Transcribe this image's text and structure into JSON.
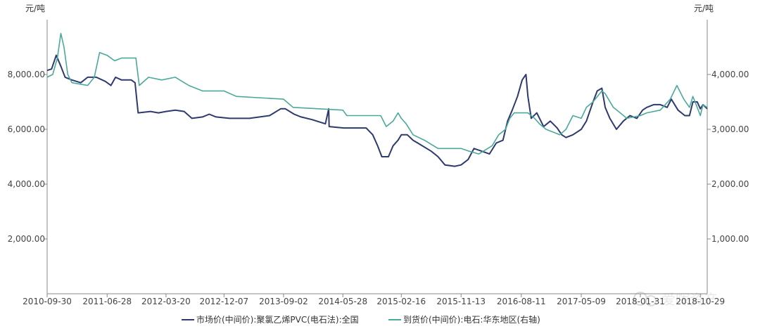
{
  "chart_data": {
    "type": "line",
    "y_left_unit": "元/吨",
    "y_right_unit": "元/吨",
    "y_left_ticks": [
      "2,000.00",
      "4,000.00",
      "6,000.00",
      "8,000.00"
    ],
    "y_right_ticks": [
      "1,000.00",
      "2,000.00",
      "3,000.00",
      "4,000.00"
    ],
    "y_left_range": [
      0,
      10000
    ],
    "y_right_range": [
      0,
      5000
    ],
    "x_range": [
      "2010-09-30",
      "2018-11-29"
    ],
    "x_ticks": [
      "2010-09-30",
      "2011-06-28",
      "2012-03-20",
      "2012-12-07",
      "2013-09-02",
      "2014-05-28",
      "2015-02-16",
      "2015-11-13",
      "2016-08-11",
      "2017-05-09",
      "2018-01-31",
      "2018-10-29"
    ],
    "grid": false,
    "legend_position": "bottom",
    "watermark": "爱晖资产",
    "series": [
      {
        "name": "市场价(中间价):聚氯乙烯PVC(电石法):全国",
        "axis": "left",
        "color": "#2e3a6e",
        "points": [
          [
            "2010-09-30",
            8150
          ],
          [
            "2010-10-20",
            8200
          ],
          [
            "2010-11-10",
            8700
          ],
          [
            "2010-12-01",
            8300
          ],
          [
            "2010-12-20",
            7900
          ],
          [
            "2011-01-20",
            7800
          ],
          [
            "2011-03-01",
            7700
          ],
          [
            "2011-04-01",
            7900
          ],
          [
            "2011-05-10",
            7900
          ],
          [
            "2011-06-20",
            7750
          ],
          [
            "2011-07-15",
            7600
          ],
          [
            "2011-08-05",
            7900
          ],
          [
            "2011-09-01",
            7800
          ],
          [
            "2011-10-15",
            7800
          ],
          [
            "2011-11-01",
            7700
          ],
          [
            "2011-11-15",
            6600
          ],
          [
            "2012-01-10",
            6650
          ],
          [
            "2012-02-15",
            6600
          ],
          [
            "2012-03-20",
            6650
          ],
          [
            "2012-05-01",
            6700
          ],
          [
            "2012-06-10",
            6650
          ],
          [
            "2012-07-15",
            6400
          ],
          [
            "2012-09-01",
            6450
          ],
          [
            "2012-10-01",
            6550
          ],
          [
            "2012-11-01",
            6450
          ],
          [
            "2013-01-01",
            6400
          ],
          [
            "2013-04-01",
            6400
          ],
          [
            "2013-07-01",
            6500
          ],
          [
            "2013-08-20",
            6750
          ],
          [
            "2013-09-10",
            6750
          ],
          [
            "2013-10-20",
            6550
          ],
          [
            "2013-11-20",
            6450
          ],
          [
            "2014-01-10",
            6350
          ],
          [
            "2014-03-10",
            6200
          ],
          [
            "2014-03-25",
            6750
          ],
          [
            "2014-03-27",
            6100
          ],
          [
            "2014-06-01",
            6050
          ],
          [
            "2014-08-01",
            6050
          ],
          [
            "2014-09-10",
            6050
          ],
          [
            "2014-10-10",
            5800
          ],
          [
            "2014-11-01",
            5400
          ],
          [
            "2014-11-20",
            5000
          ],
          [
            "2014-12-20",
            5000
          ],
          [
            "2015-01-10",
            5400
          ],
          [
            "2015-02-01",
            5600
          ],
          [
            "2015-02-16",
            5800
          ],
          [
            "2015-03-15",
            5800
          ],
          [
            "2015-04-10",
            5600
          ],
          [
            "2015-05-01",
            5500
          ],
          [
            "2015-07-01",
            5200
          ],
          [
            "2015-08-01",
            5000
          ],
          [
            "2015-09-01",
            4700
          ],
          [
            "2015-10-15",
            4650
          ],
          [
            "2015-11-13",
            4700
          ],
          [
            "2015-12-15",
            4900
          ],
          [
            "2016-01-10",
            5300
          ],
          [
            "2016-02-15",
            5200
          ],
          [
            "2016-03-20",
            5100
          ],
          [
            "2016-04-20",
            5500
          ],
          [
            "2016-05-20",
            5600
          ],
          [
            "2016-06-10",
            6300
          ],
          [
            "2016-07-01",
            6700
          ],
          [
            "2016-07-25",
            7200
          ],
          [
            "2016-08-15",
            7800
          ],
          [
            "2016-09-01",
            8000
          ],
          [
            "2016-09-10",
            7200
          ],
          [
            "2016-09-25",
            6400
          ],
          [
            "2016-10-20",
            6600
          ],
          [
            "2016-11-20",
            6100
          ],
          [
            "2016-12-20",
            6300
          ],
          [
            "2017-01-20",
            6050
          ],
          [
            "2017-02-10",
            5800
          ],
          [
            "2017-03-01",
            5700
          ],
          [
            "2017-04-01",
            5800
          ],
          [
            "2017-05-09",
            6000
          ],
          [
            "2017-06-01",
            6300
          ],
          [
            "2017-07-01",
            7000
          ],
          [
            "2017-07-20",
            7400
          ],
          [
            "2017-08-10",
            7500
          ],
          [
            "2017-08-25",
            6800
          ],
          [
            "2017-09-15",
            6400
          ],
          [
            "2017-10-15",
            6000
          ],
          [
            "2017-11-15",
            6300
          ],
          [
            "2017-12-15",
            6500
          ],
          [
            "2018-01-15",
            6400
          ],
          [
            "2018-02-10",
            6700
          ],
          [
            "2018-03-01",
            6800
          ],
          [
            "2018-04-01",
            6900
          ],
          [
            "2018-05-01",
            6900
          ],
          [
            "2018-06-01",
            6800
          ],
          [
            "2018-06-20",
            7100
          ],
          [
            "2018-07-20",
            6700
          ],
          [
            "2018-08-20",
            6500
          ],
          [
            "2018-09-10",
            6500
          ],
          [
            "2018-09-25",
            7000
          ],
          [
            "2018-10-15",
            7000
          ],
          [
            "2018-10-29",
            6750
          ],
          [
            "2018-11-10",
            6900
          ],
          [
            "2018-11-29",
            6750
          ]
        ]
      },
      {
        "name": "到货价(中间价):电石:华东地区(右轴)",
        "axis": "right",
        "color": "#4aa99a",
        "points": [
          [
            "2010-09-30",
            3950
          ],
          [
            "2010-10-25",
            4000
          ],
          [
            "2010-11-15",
            4300
          ],
          [
            "2010-12-01",
            4750
          ],
          [
            "2010-12-15",
            4500
          ],
          [
            "2011-01-01",
            4000
          ],
          [
            "2011-01-20",
            3850
          ],
          [
            "2011-04-01",
            3800
          ],
          [
            "2011-05-01",
            3950
          ],
          [
            "2011-05-25",
            4400
          ],
          [
            "2011-06-28",
            4350
          ],
          [
            "2011-08-01",
            4250
          ],
          [
            "2011-09-01",
            4300
          ],
          [
            "2011-10-15",
            4300
          ],
          [
            "2011-11-05",
            4300
          ],
          [
            "2011-11-20",
            3800
          ],
          [
            "2012-01-01",
            3950
          ],
          [
            "2012-03-01",
            3900
          ],
          [
            "2012-05-01",
            3950
          ],
          [
            "2012-07-01",
            3800
          ],
          [
            "2012-09-01",
            3700
          ],
          [
            "2012-12-07",
            3700
          ],
          [
            "2013-02-01",
            3600
          ],
          [
            "2013-09-02",
            3550
          ],
          [
            "2013-10-15",
            3400
          ],
          [
            "2014-05-28",
            3350
          ],
          [
            "2014-06-15",
            3250
          ],
          [
            "2014-11-15",
            3250
          ],
          [
            "2014-12-10",
            3050
          ],
          [
            "2015-01-10",
            3150
          ],
          [
            "2015-02-01",
            3300
          ],
          [
            "2015-02-16",
            3200
          ],
          [
            "2015-03-10",
            3100
          ],
          [
            "2015-04-10",
            2900
          ],
          [
            "2015-06-01",
            2800
          ],
          [
            "2015-08-01",
            2650
          ],
          [
            "2015-11-13",
            2650
          ],
          [
            "2015-12-20",
            2600
          ],
          [
            "2016-02-01",
            2550
          ],
          [
            "2016-04-01",
            2700
          ],
          [
            "2016-05-01",
            2900
          ],
          [
            "2016-06-01",
            3000
          ],
          [
            "2016-06-20",
            3200
          ],
          [
            "2016-07-10",
            3300
          ],
          [
            "2016-09-10",
            3300
          ],
          [
            "2016-10-10",
            3200
          ],
          [
            "2016-11-01",
            3100
          ],
          [
            "2016-12-01",
            3000
          ],
          [
            "2017-02-01",
            2900
          ],
          [
            "2017-03-01",
            3000
          ],
          [
            "2017-04-01",
            3250
          ],
          [
            "2017-05-09",
            3200
          ],
          [
            "2017-06-01",
            3400
          ],
          [
            "2017-07-01",
            3500
          ],
          [
            "2017-08-10",
            3700
          ],
          [
            "2017-08-25",
            3650
          ],
          [
            "2017-10-01",
            3400
          ],
          [
            "2017-11-01",
            3300
          ],
          [
            "2017-12-01",
            3200
          ],
          [
            "2018-01-31",
            3250
          ],
          [
            "2018-03-01",
            3300
          ],
          [
            "2018-05-01",
            3350
          ],
          [
            "2018-06-15",
            3550
          ],
          [
            "2018-07-15",
            3800
          ],
          [
            "2018-08-15",
            3550
          ],
          [
            "2018-09-10",
            3400
          ],
          [
            "2018-09-25",
            3600
          ],
          [
            "2018-10-10",
            3450
          ],
          [
            "2018-10-29",
            3250
          ],
          [
            "2018-11-10",
            3450
          ],
          [
            "2018-11-29",
            3400
          ]
        ]
      }
    ]
  }
}
